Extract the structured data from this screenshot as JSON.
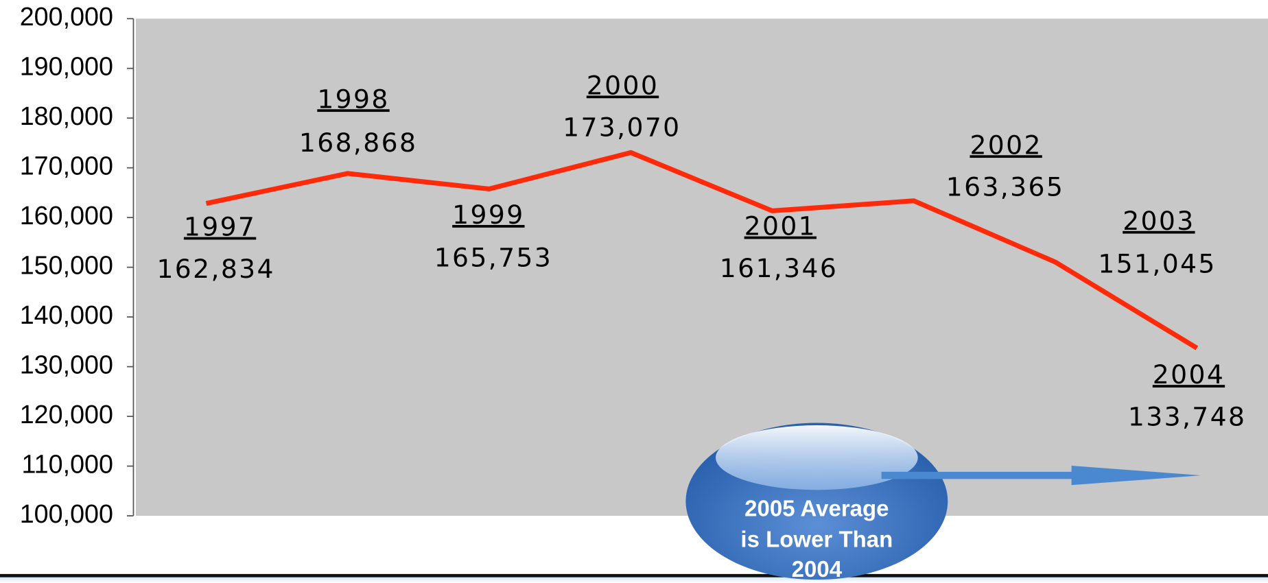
{
  "chart_data": {
    "type": "line",
    "categories": [
      "1997",
      "1998",
      "1999",
      "2000",
      "2001",
      "2002",
      "2003",
      "2004"
    ],
    "values": [
      162834,
      168868,
      165753,
      173070,
      161346,
      163365,
      151045,
      133748
    ],
    "value_labels": [
      "162,834",
      "168,868",
      "165,753",
      "173,070",
      "161,346",
      "163,365",
      "151,045",
      "133,748"
    ],
    "color": "#ff2a0a",
    "ylim": [
      100000,
      200000
    ],
    "yticks": [
      {
        "value": 100000,
        "label": "100,000"
      },
      {
        "value": 110000,
        "label": "110,000"
      },
      {
        "value": 120000,
        "label": "120,000"
      },
      {
        "value": 130000,
        "label": "130,000"
      },
      {
        "value": 140000,
        "label": "140,000"
      },
      {
        "value": 150000,
        "label": "150,000"
      },
      {
        "value": 160000,
        "label": "160,000"
      },
      {
        "value": 170000,
        "label": "170,000"
      },
      {
        "value": 180000,
        "label": "180,000"
      },
      {
        "value": 190000,
        "label": "190,000"
      },
      {
        "value": 200000,
        "label": "200,000"
      }
    ],
    "annotation": [
      "2005 Average",
      "is Lower Than",
      "2004"
    ]
  }
}
